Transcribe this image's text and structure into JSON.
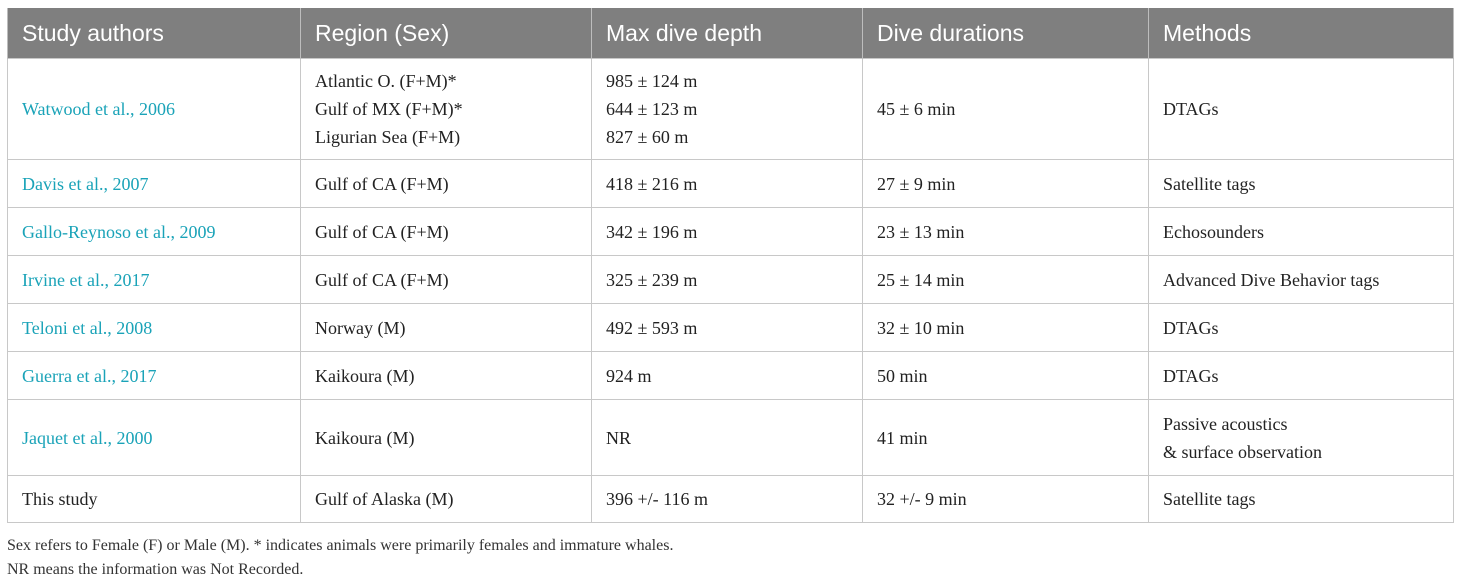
{
  "headers": [
    "Study authors",
    "Region (Sex)",
    "Max dive depth",
    "Dive durations",
    "Methods"
  ],
  "rows": [
    {
      "author": "Watwood et al., 2006",
      "author_link": true,
      "region": [
        "Atlantic O. (F+M)*",
        "Gulf of MX (F+M)*",
        "Ligurian Sea (F+M)"
      ],
      "depth": [
        "985 ± 124 m",
        "644 ± 123 m",
        "827 ± 60 m"
      ],
      "duration": [
        "45 ± 6 min"
      ],
      "methods": [
        "DTAGs"
      ]
    },
    {
      "author": "Davis et al., 2007",
      "author_link": true,
      "region": [
        "Gulf of CA (F+M)"
      ],
      "depth": [
        "418 ± 216 m"
      ],
      "duration": [
        "27 ± 9 min"
      ],
      "methods": [
        "Satellite tags"
      ]
    },
    {
      "author": "Gallo-Reynoso et al., 2009",
      "author_link": true,
      "region": [
        "Gulf of CA (F+M)"
      ],
      "depth": [
        "342 ± 196 m"
      ],
      "duration": [
        "23 ± 13 min"
      ],
      "methods": [
        "Echosounders"
      ]
    },
    {
      "author": "Irvine et al., 2017",
      "author_link": true,
      "region": [
        "Gulf of CA (F+M)"
      ],
      "depth": [
        "325 ± 239 m"
      ],
      "duration": [
        "25 ± 14 min"
      ],
      "methods": [
        "Advanced Dive Behavior tags"
      ]
    },
    {
      "author": "Teloni et al., 2008",
      "author_link": true,
      "region": [
        "Norway (M)"
      ],
      "depth": [
        "492 ± 593 m"
      ],
      "duration": [
        "32 ± 10 min"
      ],
      "methods": [
        "DTAGs"
      ]
    },
    {
      "author": "Guerra et al., 2017",
      "author_link": true,
      "region": [
        "Kaikoura (M)"
      ],
      "depth": [
        "924 m"
      ],
      "duration": [
        "50 min"
      ],
      "methods": [
        "DTAGs"
      ]
    },
    {
      "author": "Jaquet et al., 2000",
      "author_link": true,
      "region": [
        "Kaikoura (M)"
      ],
      "depth": [
        "NR"
      ],
      "duration": [
        "41 min"
      ],
      "methods": [
        "Passive acoustics",
        "& surface observation"
      ]
    },
    {
      "author": "This study",
      "author_link": false,
      "region": [
        "Gulf of Alaska (M)"
      ],
      "depth": [
        "396 +/- 116 m"
      ],
      "duration": [
        "32 +/- 9 min"
      ],
      "methods": [
        "Satellite tags"
      ]
    }
  ],
  "footnotes": [
    "Sex refers to Female (F) or Male (M). * indicates animals were primarily females and immature whales.",
    "NR means the information was Not Recorded."
  ],
  "colors": {
    "header_bg": "#7f7f7f",
    "link": "#1aa3b8",
    "border": "#c8c8c8"
  }
}
